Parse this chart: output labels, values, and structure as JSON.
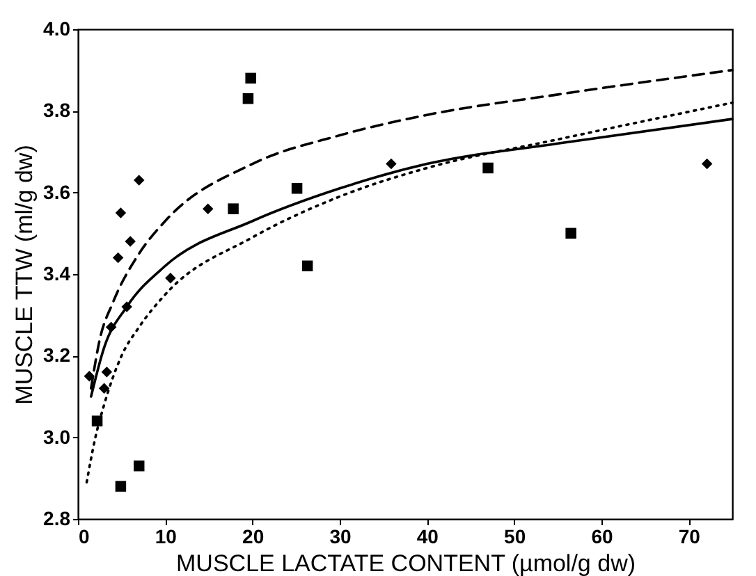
{
  "chart_data": {
    "type": "scatter",
    "xlabel": "MUSCLE LACTATE CONTENT (µmol/g dw)",
    "ylabel": "MUSCLE TTW (ml/g dw)",
    "xlim": [
      0,
      75
    ],
    "ylim": [
      2.8,
      4.0
    ],
    "xticks": [
      0,
      10,
      20,
      30,
      40,
      50,
      60,
      70
    ],
    "yticks": [
      {
        "value": 2.8,
        "label": "2.8"
      },
      {
        "value": 3,
        "label": "3.0"
      },
      {
        "value": 3.2,
        "label": "3.2"
      },
      {
        "value": 3.4,
        "label": "3.4"
      },
      {
        "value": 3.6,
        "label": "3.6"
      },
      {
        "value": 3.8,
        "label": "3.8"
      },
      {
        "value": 4,
        "label": "4.0"
      }
    ],
    "grid": false,
    "series": [
      {
        "marker": "diamond",
        "color": "#000000",
        "x": [
          1.3,
          3.3,
          3.0,
          3.8,
          5.6,
          4.6,
          4.9,
          6.0,
          7.0,
          10.6,
          14.9,
          35.9,
          72.1
        ],
        "values": [
          3.15,
          3.16,
          3.12,
          3.27,
          3.32,
          3.44,
          3.55,
          3.48,
          3.63,
          3.39,
          3.56,
          3.67,
          3.67
        ]
      },
      {
        "marker": "square",
        "color": "#000000",
        "x": [
          2.2,
          4.9,
          7.0,
          19.5,
          19.8,
          17.8,
          25.1,
          26.3,
          47.0,
          56.5
        ],
        "values": [
          3.04,
          2.88,
          2.93,
          3.83,
          3.88,
          3.56,
          3.61,
          3.42,
          3.66,
          3.5
        ]
      },
      {
        "type": "line",
        "line_style": "solid",
        "color": "#000000",
        "x": [
          1.5,
          3,
          5.6,
          10,
          20,
          30,
          40,
          55,
          75
        ],
        "values": [
          3.1,
          3.22,
          3.32,
          3.42,
          3.53,
          3.61,
          3.67,
          3.72,
          3.78
        ]
      },
      {
        "type": "line",
        "line_style": "dashed",
        "color": "#000000",
        "x": [
          1.5,
          2.5,
          4,
          7,
          10,
          20,
          30,
          40,
          55,
          75
        ],
        "values": [
          3.12,
          3.24,
          3.33,
          3.45,
          3.53,
          3.67,
          3.74,
          3.79,
          3.84,
          3.9
        ]
      },
      {
        "type": "line",
        "line_style": "dotted",
        "color": "#000000",
        "x": [
          1,
          2,
          3,
          5,
          7,
          10,
          20,
          30,
          40,
          55,
          75
        ],
        "values": [
          2.89,
          3.0,
          3.08,
          3.2,
          3.27,
          3.35,
          3.49,
          3.59,
          3.66,
          3.73,
          3.82
        ]
      }
    ]
  }
}
